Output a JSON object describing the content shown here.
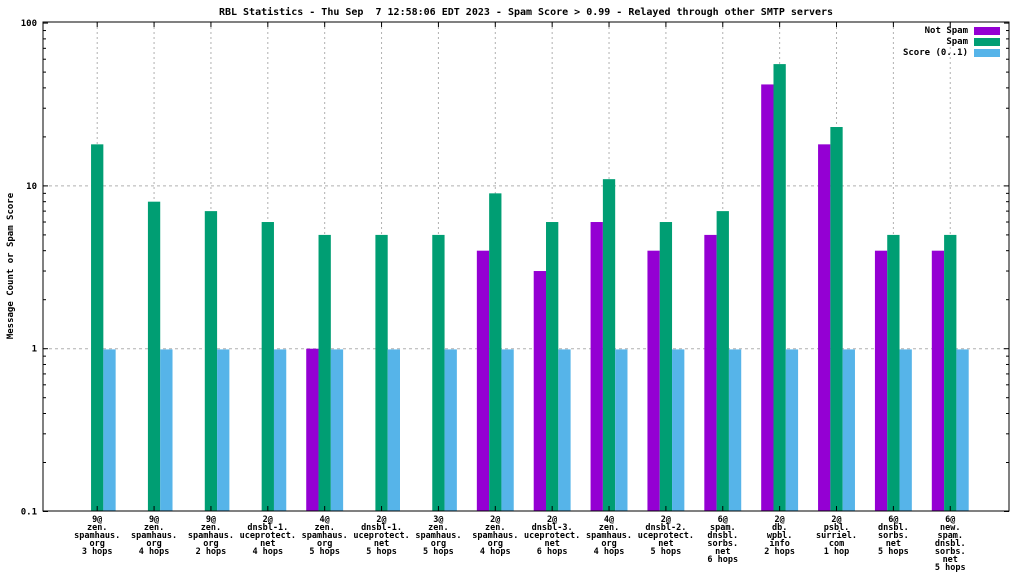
{
  "title": "RBL Statistics - Thu Sep  7 12:58:06 EDT 2023 - Spam Score > 0.99 - Relayed through other SMTP servers",
  "ylabel": "Message Count or Spam Score",
  "colors": {
    "not_spam": "#9400d3",
    "spam": "#009e73",
    "score": "#56b4e9",
    "grid": "#b0b0b0",
    "axis": "#000000",
    "background": "#ffffff"
  },
  "chart_data": {
    "type": "bar",
    "title": "RBL Statistics - Thu Sep  7 12:58:06 EDT 2023 - Spam Score > 0.99 - Relayed through other SMTP servers",
    "xlabel": "",
    "ylabel": "Message Count or Spam Score",
    "y_scale": "log",
    "ylim": [
      0.1,
      100
    ],
    "ytick_labels": [
      "100",
      "10",
      "1",
      "0.1"
    ],
    "ytick_values": [
      100,
      10,
      1,
      0.1
    ],
    "grid_y_values": [
      10,
      1
    ],
    "grid": true,
    "legend_position": "top-right",
    "categories": [
      [
        "9@",
        "zen.",
        "spamhaus.",
        "org",
        "3 hops"
      ],
      [
        "9@",
        "zen.",
        "spamhaus.",
        "org",
        "4 hops"
      ],
      [
        "9@",
        "zen.",
        "spamhaus.",
        "org",
        "2 hops"
      ],
      [
        "2@",
        "dnsbl-1.",
        "uceprotect.",
        "net",
        "4 hops"
      ],
      [
        "4@",
        "zen.",
        "spamhaus.",
        "org",
        "5 hops"
      ],
      [
        "2@",
        "dnsbl-1.",
        "uceprotect.",
        "net",
        "5 hops"
      ],
      [
        "3@",
        "zen.",
        "spamhaus.",
        "org",
        "5 hops"
      ],
      [
        "2@",
        "zen.",
        "spamhaus.",
        "org",
        "4 hops"
      ],
      [
        "2@",
        "dnsbl-3.",
        "uceprotect.",
        "net",
        "6 hops"
      ],
      [
        "4@",
        "zen.",
        "spamhaus.",
        "org",
        "4 hops"
      ],
      [
        "2@",
        "dnsbl-2.",
        "uceprotect.",
        "net",
        "5 hops"
      ],
      [
        "6@",
        "spam.",
        "dnsbl.",
        "sorbs.",
        "net",
        "6 hops"
      ],
      [
        "2@",
        "db.",
        "wpbl.",
        "info",
        "2 hops"
      ],
      [
        "2@",
        "psbl.",
        "surriel.",
        "com",
        "1 hop"
      ],
      [
        "6@",
        "dnsbl.",
        "sorbs.",
        "net",
        "5 hops"
      ],
      [
        "6@",
        "new.",
        "spam.",
        "dnsbl.",
        "sorbs.",
        "net",
        "5 hops"
      ]
    ],
    "series": [
      {
        "name": "Not Spam",
        "color": "#9400d3",
        "values": [
          0,
          0,
          0,
          0,
          1,
          0,
          0,
          4,
          3,
          6,
          4,
          5,
          42,
          18,
          4,
          4
        ]
      },
      {
        "name": "Spam",
        "color": "#009e73",
        "values": [
          18,
          8,
          7,
          6,
          5,
          5,
          5,
          9,
          6,
          11,
          6,
          7,
          56,
          23,
          5,
          5
        ]
      },
      {
        "name": "Score (0..1)",
        "color": "#56b4e9",
        "values": [
          0.99,
          0.99,
          0.99,
          0.99,
          0.99,
          0.99,
          0.99,
          0.99,
          0.99,
          0.99,
          0.99,
          0.99,
          0.99,
          0.99,
          0.99,
          0.99
        ]
      }
    ]
  }
}
